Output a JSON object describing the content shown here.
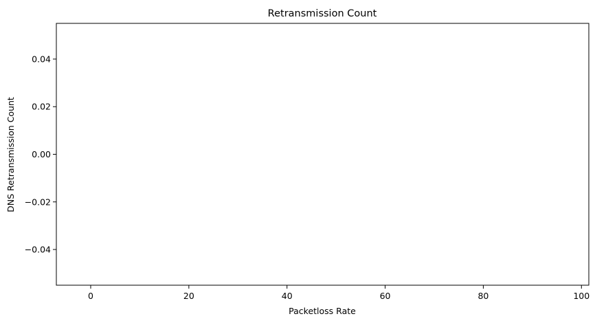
{
  "chart_data": {
    "type": "line",
    "title": "Retransmission Count",
    "xlabel": "Packetloss Rate",
    "ylabel": "DNS Retransmission Count",
    "xlim": [
      -7,
      101.5
    ],
    "ylim": [
      -0.055,
      0.055
    ],
    "x_ticks": [
      0,
      20,
      40,
      60,
      80,
      100
    ],
    "x_tick_labels": [
      "0",
      "20",
      "40",
      "60",
      "80",
      "100"
    ],
    "y_ticks": [
      0.04,
      0.02,
      0.0,
      -0.02,
      -0.04
    ],
    "y_tick_labels": [
      "0.04",
      "0.02",
      "0.00",
      "−0.02",
      "−0.04"
    ],
    "series": [],
    "grid": false
  }
}
